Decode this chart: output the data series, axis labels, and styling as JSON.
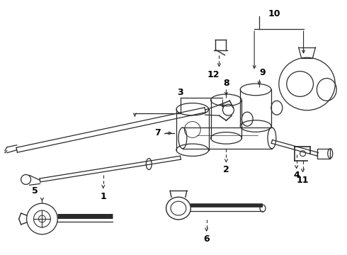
{
  "bg_color": "#ffffff",
  "lc": "#2a2a2a",
  "lw": 1.0,
  "figw": 4.9,
  "figh": 3.6,
  "dpi": 100
}
